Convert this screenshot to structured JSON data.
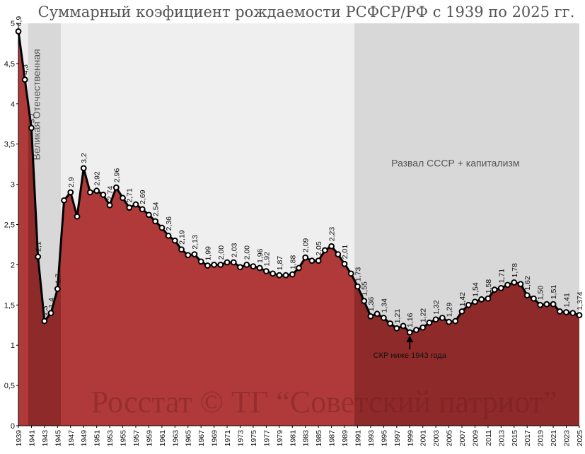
{
  "chart_data": {
    "type": "area",
    "title": "Суммарный коэфициент рождаемости РСФСР/РФ с 1939 по 2025 гг.",
    "xlabel": "",
    "ylabel": "",
    "ylim": [
      0,
      5
    ],
    "xlim": [
      1939,
      2025
    ],
    "y_ticks": [
      "0",
      "0,5",
      "1",
      "1,5",
      "2",
      "2,5",
      "3",
      "3,5",
      "4",
      "4,5",
      "5"
    ],
    "x_ticks": [
      "1939",
      "1941",
      "1943",
      "1945",
      "1947",
      "1949",
      "1951",
      "1953",
      "1955",
      "1957",
      "1959",
      "1961",
      "1963",
      "1965",
      "1967",
      "1969",
      "1971",
      "1973",
      "1975",
      "1977",
      "1979",
      "1981",
      "1983",
      "1985",
      "1987",
      "1989",
      "1991",
      "1993",
      "1995",
      "1997",
      "1999",
      "2001",
      "2003",
      "2005",
      "2007",
      "2009",
      "2011",
      "2013",
      "2015",
      "2017",
      "2019",
      "2021",
      "2023",
      "2025"
    ],
    "series": [
      {
        "name": "СКР",
        "points": [
          {
            "x": 1939,
            "y": 4.9
          },
          {
            "x": 1940,
            "y": 4.3
          },
          {
            "x": 1941,
            "y": 3.7
          },
          {
            "x": 1942,
            "y": 2.1
          },
          {
            "x": 1943,
            "y": 1.3
          },
          {
            "x": 1944,
            "y": 1.4
          },
          {
            "x": 1945,
            "y": 1.7
          },
          {
            "x": 1946,
            "y": 2.8
          },
          {
            "x": 1947,
            "y": 2.9
          },
          {
            "x": 1948,
            "y": 2.6
          },
          {
            "x": 1949,
            "y": 3.2
          },
          {
            "x": 1950,
            "y": 2.9
          },
          {
            "x": 1951,
            "y": 2.92
          },
          {
            "x": 1952,
            "y": 2.87
          },
          {
            "x": 1953,
            "y": 2.74
          },
          {
            "x": 1954,
            "y": 2.96
          },
          {
            "x": 1955,
            "y": 2.83
          },
          {
            "x": 1956,
            "y": 2.71
          },
          {
            "x": 1957,
            "y": 2.75
          },
          {
            "x": 1958,
            "y": 2.69
          },
          {
            "x": 1959,
            "y": 2.62
          },
          {
            "x": 1960,
            "y": 2.54
          },
          {
            "x": 1961,
            "y": 2.46
          },
          {
            "x": 1962,
            "y": 2.36
          },
          {
            "x": 1963,
            "y": 2.3
          },
          {
            "x": 1964,
            "y": 2.19
          },
          {
            "x": 1965,
            "y": 2.12
          },
          {
            "x": 1966,
            "y": 2.13
          },
          {
            "x": 1967,
            "y": 2.04
          },
          {
            "x": 1968,
            "y": 1.99
          },
          {
            "x": 1969,
            "y": 2.0
          },
          {
            "x": 1970,
            "y": 2.0
          },
          {
            "x": 1971,
            "y": 2.03
          },
          {
            "x": 1972,
            "y": 2.03
          },
          {
            "x": 1973,
            "y": 1.97
          },
          {
            "x": 1974,
            "y": 2.0
          },
          {
            "x": 1975,
            "y": 1.98
          },
          {
            "x": 1976,
            "y": 1.96
          },
          {
            "x": 1977,
            "y": 1.92
          },
          {
            "x": 1978,
            "y": 1.89
          },
          {
            "x": 1979,
            "y": 1.87
          },
          {
            "x": 1980,
            "y": 1.87
          },
          {
            "x": 1981,
            "y": 1.88
          },
          {
            "x": 1982,
            "y": 1.96
          },
          {
            "x": 1983,
            "y": 2.09
          },
          {
            "x": 1984,
            "y": 2.05
          },
          {
            "x": 1985,
            "y": 2.05
          },
          {
            "x": 1986,
            "y": 2.18
          },
          {
            "x": 1987,
            "y": 2.23
          },
          {
            "x": 1988,
            "y": 2.13
          },
          {
            "x": 1989,
            "y": 2.01
          },
          {
            "x": 1990,
            "y": 1.89
          },
          {
            "x": 1991,
            "y": 1.73
          },
          {
            "x": 1992,
            "y": 1.55
          },
          {
            "x": 1993,
            "y": 1.36
          },
          {
            "x": 1994,
            "y": 1.39
          },
          {
            "x": 1995,
            "y": 1.34
          },
          {
            "x": 1996,
            "y": 1.27
          },
          {
            "x": 1997,
            "y": 1.21
          },
          {
            "x": 1998,
            "y": 1.24
          },
          {
            "x": 1999,
            "y": 1.16
          },
          {
            "x": 2000,
            "y": 1.19
          },
          {
            "x": 2001,
            "y": 1.22
          },
          {
            "x": 2002,
            "y": 1.28
          },
          {
            "x": 2003,
            "y": 1.32
          },
          {
            "x": 2004,
            "y": 1.34
          },
          {
            "x": 2005,
            "y": 1.29
          },
          {
            "x": 2006,
            "y": 1.3
          },
          {
            "x": 2007,
            "y": 1.42
          },
          {
            "x": 2008,
            "y": 1.5
          },
          {
            "x": 2009,
            "y": 1.54
          },
          {
            "x": 2010,
            "y": 1.57
          },
          {
            "x": 2011,
            "y": 1.58
          },
          {
            "x": 2012,
            "y": 1.69
          },
          {
            "x": 2013,
            "y": 1.71
          },
          {
            "x": 2014,
            "y": 1.75
          },
          {
            "x": 2015,
            "y": 1.78
          },
          {
            "x": 2016,
            "y": 1.76
          },
          {
            "x": 2017,
            "y": 1.62
          },
          {
            "x": 2018,
            "y": 1.58
          },
          {
            "x": 2019,
            "y": 1.5
          },
          {
            "x": 2020,
            "y": 1.51
          },
          {
            "x": 2021,
            "y": 1.51
          },
          {
            "x": 2022,
            "y": 1.42
          },
          {
            "x": 2023,
            "y": 1.41
          },
          {
            "x": 2024,
            "y": 1.4
          },
          {
            "x": 2025,
            "y": 1.374
          }
        ]
      }
    ],
    "data_labels": [
      {
        "x": 1939,
        "text": "4,9"
      },
      {
        "x": 1940,
        "text": "4,3"
      },
      {
        "x": 1941,
        "text": "3,7"
      },
      {
        "x": 1942,
        "text": "2,1"
      },
      {
        "x": 1943,
        "text": "1,3"
      },
      {
        "x": 1944,
        "text": "1,4"
      },
      {
        "x": 1945,
        "text": "1,7"
      },
      {
        "x": 1947,
        "text": "2,9"
      },
      {
        "x": 1949,
        "text": "3,2"
      },
      {
        "x": 1951,
        "text": "2,92"
      },
      {
        "x": 1953,
        "text": "2,74"
      },
      {
        "x": 1954,
        "text": "2,96"
      },
      {
        "x": 1956,
        "text": "2,71"
      },
      {
        "x": 1958,
        "text": "2,69"
      },
      {
        "x": 1960,
        "text": "2,54"
      },
      {
        "x": 1962,
        "text": "2,36"
      },
      {
        "x": 1964,
        "text": "2,19"
      },
      {
        "x": 1966,
        "text": "2,13"
      },
      {
        "x": 1968,
        "text": "1,99"
      },
      {
        "x": 1970,
        "text": "2,00"
      },
      {
        "x": 1972,
        "text": "2,03"
      },
      {
        "x": 1974,
        "text": "2,00"
      },
      {
        "x": 1976,
        "text": "1,96"
      },
      {
        "x": 1977,
        "text": "1,92"
      },
      {
        "x": 1979,
        "text": "1,87"
      },
      {
        "x": 1981,
        "text": "1,88"
      },
      {
        "x": 1983,
        "text": "2,09"
      },
      {
        "x": 1985,
        "text": "2,05"
      },
      {
        "x": 1987,
        "text": "2,23"
      },
      {
        "x": 1989,
        "text": "2,01"
      },
      {
        "x": 1991,
        "text": "1,73"
      },
      {
        "x": 1992,
        "text": "1,55"
      },
      {
        "x": 1993,
        "text": "1,36"
      },
      {
        "x": 1995,
        "text": "1,34"
      },
      {
        "x": 1997,
        "text": "1,21"
      },
      {
        "x": 1999,
        "text": "1,16"
      },
      {
        "x": 2001,
        "text": "1,22"
      },
      {
        "x": 2003,
        "text": "1,32"
      },
      {
        "x": 2005,
        "text": "1,29"
      },
      {
        "x": 2007,
        "text": "1,42"
      },
      {
        "x": 2009,
        "text": "1,54"
      },
      {
        "x": 2011,
        "text": "1,58"
      },
      {
        "x": 2013,
        "text": "1,71"
      },
      {
        "x": 2015,
        "text": "1,78"
      },
      {
        "x": 2017,
        "text": "1,62"
      },
      {
        "x": 2019,
        "text": "1,50"
      },
      {
        "x": 2021,
        "text": "1,51"
      },
      {
        "x": 2023,
        "text": "1,41"
      },
      {
        "x": 2025,
        "text": "1,374"
      }
    ],
    "periods": [
      {
        "name": "Великая Отечественная",
        "from": 1941,
        "to": 1945
      },
      {
        "name": "Развал СССР + капитализм",
        "from": 1991,
        "to": 2025
      }
    ],
    "annotation": {
      "text": "СКР ниже 1943 года",
      "x": 1999
    },
    "watermark": "Росстат © ТГ “Советский патриот”",
    "colors": {
      "area": "#b03a3a",
      "area_dark": "#8f2a2a",
      "line": "#000000",
      "marker_fill": "#ffffff",
      "background_light": "#efefef",
      "background_dark": "#d8d8d8"
    }
  }
}
